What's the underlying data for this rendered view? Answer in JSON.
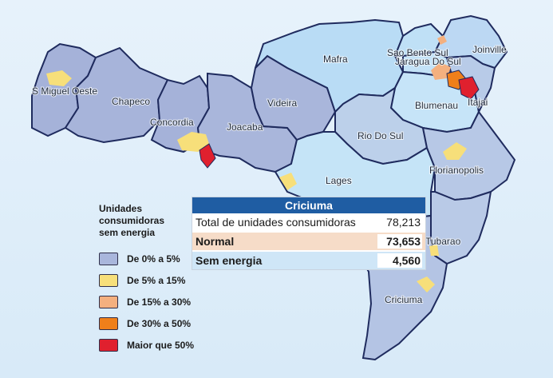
{
  "map": {
    "regions": [
      {
        "name": "S Miguel Oeste"
      },
      {
        "name": "Chapeco"
      },
      {
        "name": "Concordia"
      },
      {
        "name": "Joacaba"
      },
      {
        "name": "Videira"
      },
      {
        "name": "Mafra"
      },
      {
        "name": "Sao Bento Sul"
      },
      {
        "name": "Joinville"
      },
      {
        "name": "Jaragua Do Sul"
      },
      {
        "name": "Blumenau"
      },
      {
        "name": "Itajai"
      },
      {
        "name": "Rio Do Sul"
      },
      {
        "name": "Lages"
      },
      {
        "name": "Florianopolis"
      },
      {
        "name": "Tubarao"
      },
      {
        "name": "Criciuma"
      }
    ]
  },
  "legend": {
    "title_line1": "Unidades",
    "title_line2": "consumidoras",
    "title_line3": "sem energia",
    "items": [
      {
        "label": "De 0% a 5%",
        "color": "#a9b6dc"
      },
      {
        "label": "De 5% a 15%",
        "color": "#f7df7a"
      },
      {
        "label": "De 15% a 30%",
        "color": "#f4b07f"
      },
      {
        "label": "De 30% a 50%",
        "color": "#ef7f1a"
      },
      {
        "label": "Maior que 50%",
        "color": "#e0202e"
      }
    ]
  },
  "info": {
    "title": "Criciuma",
    "total_label": "Total de unidades consumidoras",
    "total_value": "78,213",
    "normal_label": "Normal",
    "normal_value": "73,653",
    "sem_label": "Sem energia",
    "sem_value": "4,560"
  },
  "colors": {
    "west": "#a5b2d9",
    "north": "#b9dcf5",
    "lages": "#c5e4f7",
    "east": "#b7c8e6",
    "border": "#1f2b5e"
  }
}
